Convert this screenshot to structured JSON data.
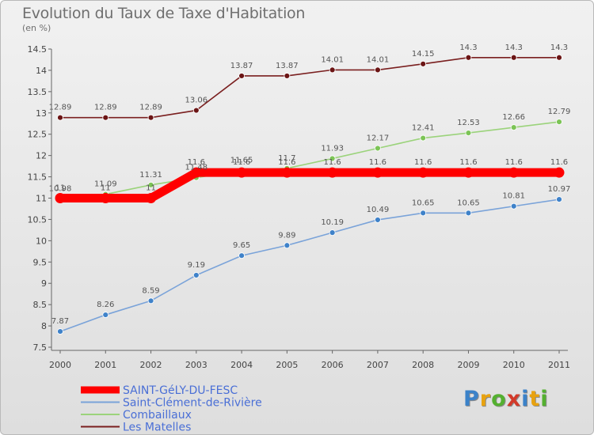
{
  "header": {
    "title": "Evolution du Taux de Taxe d'Habitation",
    "unit": "(en %)"
  },
  "logo": {
    "text": "Proxiti",
    "letters": [
      {
        "ch": "P",
        "color": "#3b82c9"
      },
      {
        "ch": "r",
        "color": "#e8a20f"
      },
      {
        "ch": "o",
        "color": "#54b030"
      },
      {
        "ch": "x",
        "color": "#d23a2a"
      },
      {
        "ch": "i",
        "color": "#3b82c9"
      },
      {
        "ch": "t",
        "color": "#e8a20f"
      },
      {
        "ch": "i",
        "color": "#54b030"
      }
    ]
  },
  "chart_data": {
    "type": "line",
    "title": "Evolution du Taux de Taxe d'Habitation",
    "ylabel": "(en %)",
    "xlabel": "",
    "ylim": [
      7.5,
      14.5
    ],
    "yticks": [
      "7.5",
      "8",
      "8.5",
      "9",
      "9.5",
      "10",
      "10.5",
      "11",
      "11.5",
      "12",
      "12.5",
      "13",
      "13.5",
      "14",
      "14.5"
    ],
    "ytick_values": [
      7.5,
      8,
      8.5,
      9,
      9.5,
      10,
      10.5,
      11,
      11.5,
      12,
      12.5,
      13,
      13.5,
      14,
      14.5
    ],
    "x": [
      "2000",
      "2001",
      "2002",
      "2003",
      "2004",
      "2005",
      "2006",
      "2007",
      "2008",
      "2009",
      "2010",
      "2011"
    ],
    "legend_position": "bottom-left",
    "grid": false,
    "series": [
      {
        "name": "Les Matelles",
        "color": "#7a1f1f",
        "values": [
          12.89,
          12.89,
          12.89,
          13.06,
          13.87,
          13.87,
          14.01,
          14.01,
          14.15,
          14.3,
          14.3,
          14.3
        ],
        "labels": [
          "12.89",
          "12.89",
          "12.89",
          "13.06",
          "13.87",
          "13.87",
          "14.01",
          "14.01",
          "14.15",
          "14.3",
          "14.3",
          "14.3"
        ]
      },
      {
        "name": "Combaillaux",
        "color": "#9bd37b",
        "values": [
          10.98,
          11.09,
          11.31,
          11.48,
          11.65,
          11.7,
          11.93,
          12.17,
          12.41,
          12.53,
          12.66,
          12.79
        ],
        "labels": [
          "10.98",
          "11.09",
          "11.31",
          "11.48",
          "11.65",
          "11.7",
          "11.93",
          "12.17",
          "12.41",
          "12.53",
          "12.66",
          "12.79"
        ]
      },
      {
        "name": "Saint-Clément-de-Rivière",
        "color": "#7aa3d9",
        "values": [
          7.87,
          8.26,
          8.59,
          9.19,
          9.65,
          9.89,
          10.19,
          10.49,
          10.65,
          10.65,
          10.81,
          10.97
        ],
        "labels": [
          "7.87",
          "8.26",
          "8.59",
          "9.19",
          "9.65",
          "9.89",
          "10.19",
          "10.49",
          "10.65",
          "10.65",
          "10.81",
          "10.97"
        ]
      },
      {
        "name": "SAINT-GéLY-DU-FESC",
        "color": "#ff0000",
        "values": [
          11,
          11,
          11,
          11.6,
          11.6,
          11.6,
          11.6,
          11.6,
          11.6,
          11.6,
          11.6,
          11.6
        ],
        "labels": [
          "11",
          "11",
          "11",
          "11.6",
          "11.6",
          "11.6",
          "11.6",
          "11.6",
          "11.6",
          "11.6",
          "11.6",
          "11.6"
        ]
      }
    ],
    "legend": [
      "SAINT-GéLY-DU-FESC",
      "Saint-Clément-de-Rivière",
      "Combaillaux",
      "Les Matelles"
    ]
  }
}
